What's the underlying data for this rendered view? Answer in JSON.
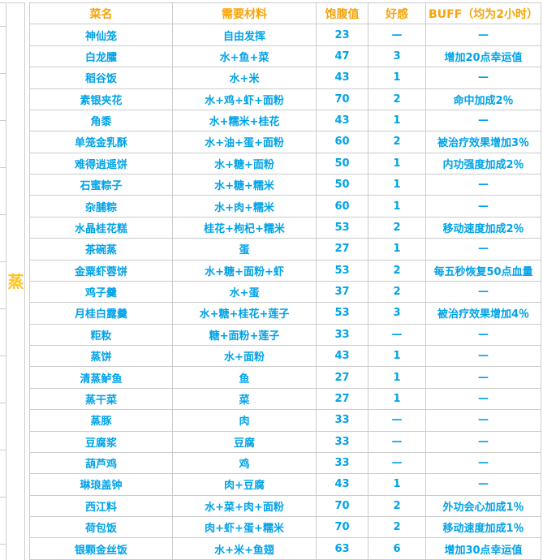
{
  "category_label": "蒸",
  "colors": {
    "header_text": "#f5a40a",
    "body_text": "#00a2e8",
    "category_text": "#ffc423",
    "grid_border": "#cccccc",
    "background": "#ffffff"
  },
  "table": {
    "headers": [
      "菜名",
      "需要材料",
      "饱腹值",
      "好感",
      "BUFF（均为2小时）"
    ],
    "rows": [
      {
        "name": "神仙笼",
        "materials": "自由发挥",
        "fullness": "23",
        "favor": "—",
        "buff": "—"
      },
      {
        "name": "白龙臛",
        "materials": "水+鱼+菜",
        "fullness": "47",
        "favor": "3",
        "buff": "增加20点幸运值"
      },
      {
        "name": "稻谷饭",
        "materials": "水+米",
        "fullness": "43",
        "favor": "1",
        "buff": "—"
      },
      {
        "name": "素银夹花",
        "materials": "水+鸡+虾+面粉",
        "fullness": "70",
        "favor": "2",
        "buff": "命中加成2％"
      },
      {
        "name": "角黍",
        "materials": "水+糯米+桂花",
        "fullness": "43",
        "favor": "1",
        "buff": "—"
      },
      {
        "name": "单笼金乳酥",
        "materials": "水+油+蛋+面粉",
        "fullness": "60",
        "favor": "2",
        "buff": "被治疗效果增加3％"
      },
      {
        "name": "难得逍遥饼",
        "materials": "水+糖+面粉",
        "fullness": "50",
        "favor": "1",
        "buff": "内功强度加成2％"
      },
      {
        "name": "石蜜粽子",
        "materials": "水+糖+糯米",
        "fullness": "50",
        "favor": "1",
        "buff": "—"
      },
      {
        "name": "杂脯粽",
        "materials": "水+肉+糯米",
        "fullness": "60",
        "favor": "1",
        "buff": "—"
      },
      {
        "name": "水晶桂花糕",
        "materials": "桂花+枸杞+糯米",
        "fullness": "53",
        "favor": "2",
        "buff": "移动速度加成2％"
      },
      {
        "name": "茶碗蒸",
        "materials": "蛋",
        "fullness": "27",
        "favor": "1",
        "buff": "—"
      },
      {
        "name": "金粟虾蓉饼",
        "materials": "水+糖+面粉+虾",
        "fullness": "53",
        "favor": "2",
        "buff": "每五秒恢复50点血量"
      },
      {
        "name": "鸡子羹",
        "materials": "水+蛋",
        "fullness": "37",
        "favor": "2",
        "buff": "—"
      },
      {
        "name": "月桂白露羹",
        "materials": "水+糖+桂花+莲子",
        "fullness": "53",
        "favor": "3",
        "buff": "被治疗效果增加4％"
      },
      {
        "name": "粔籹",
        "materials": "糖+面粉+莲子",
        "fullness": "33",
        "favor": "—",
        "buff": "—"
      },
      {
        "name": "蒸饼",
        "materials": "水+面粉",
        "fullness": "43",
        "favor": "1",
        "buff": "—"
      },
      {
        "name": "清蒸鲈鱼",
        "materials": "鱼",
        "fullness": "27",
        "favor": "1",
        "buff": "—"
      },
      {
        "name": "蒸干菜",
        "materials": "菜",
        "fullness": "27",
        "favor": "1",
        "buff": "—"
      },
      {
        "name": "蒸豚",
        "materials": "肉",
        "fullness": "33",
        "favor": "—",
        "buff": "—"
      },
      {
        "name": "豆腐浆",
        "materials": "豆腐",
        "fullness": "33",
        "favor": "—",
        "buff": "—"
      },
      {
        "name": "葫芦鸡",
        "materials": "鸡",
        "fullness": "33",
        "favor": "—",
        "buff": "—"
      },
      {
        "name": "琳琅盖钟",
        "materials": "肉+豆腐",
        "fullness": "43",
        "favor": "1",
        "buff": "—"
      },
      {
        "name": "西江料",
        "materials": "水+菜+肉+面粉",
        "fullness": "70",
        "favor": "2",
        "buff": "外功会心加成1％"
      },
      {
        "name": "荷包饭",
        "materials": "肉+虾+蛋+糯米",
        "fullness": "70",
        "favor": "2",
        "buff": "移动速度加成1％"
      },
      {
        "name": "银颗金丝饭",
        "materials": "水+米+鱼翅",
        "fullness": "63",
        "favor": "6",
        "buff": "增加30点幸运值"
      }
    ]
  }
}
